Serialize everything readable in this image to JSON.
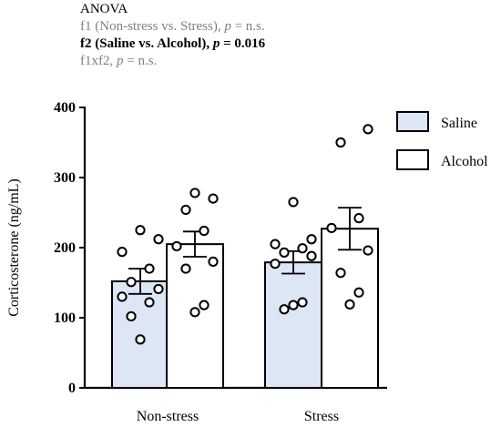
{
  "anova": {
    "heading": "ANOVA",
    "lines": [
      {
        "term": "f1 (Non-stress vs. Stress), ",
        "p_label": "p",
        "p_rest": " = n.s.",
        "bold": false
      },
      {
        "term": "f2 (Saline vs. Alcohol), ",
        "p_label": "p",
        "p_rest": " = 0.016",
        "bold": true
      },
      {
        "term": "f1xf2, ",
        "p_label": "p",
        "p_rest": " = n.s.",
        "bold": false
      }
    ]
  },
  "colors": {
    "saline_fill": "#dce6f5",
    "alcohol_fill": "#ffffff",
    "stroke": "#000000",
    "muted_text": "#808080"
  },
  "chart_data": {
    "type": "bar",
    "ylabel": "Corticosterone (ng/mL)",
    "xlabel": "",
    "ylim": [
      0,
      400
    ],
    "yticks": [
      0,
      100,
      200,
      300,
      400
    ],
    "categories": [
      "Non-stress",
      "Stress"
    ],
    "legend": {
      "placement": "top-right"
    },
    "series": [
      {
        "name": "Saline",
        "fill": "#dce6f5",
        "values": [
          152,
          179
        ],
        "sem": [
          18,
          16
        ],
        "points": [
          [
            69,
            102,
            122,
            130,
            141,
            151,
            170,
            194,
            212,
            225
          ],
          [
            112,
            118,
            122,
            177,
            188,
            193,
            199,
            205,
            212,
            265
          ]
        ]
      },
      {
        "name": "Alcohol",
        "fill": "#ffffff",
        "values": [
          205,
          227
        ],
        "sem": [
          18,
          30
        ],
        "points": [
          [
            108,
            118,
            170,
            180,
            202,
            224,
            254,
            270,
            278
          ],
          [
            119,
            136,
            164,
            196,
            228,
            242,
            350,
            369
          ]
        ]
      }
    ]
  }
}
